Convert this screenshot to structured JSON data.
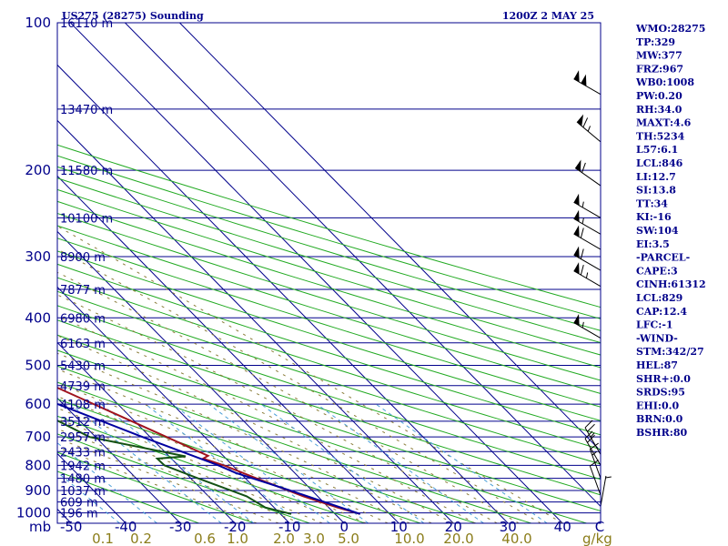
{
  "header": {
    "station": "US275 (28275) Sounding",
    "time": "1200Z  2 MAY 25"
  },
  "indices": [
    "WMO:28275",
    "TP:329",
    "MW:377",
    "FRZ:967",
    "WB0:1008",
    "PW:0.20",
    "RH:34.0",
    "MAXT:4.6",
    "TH:5234",
    "L57:6.1",
    "LCL:846",
    "LI:12.7",
    "SI:13.8",
    "TT:34",
    "KI:-16",
    "SW:104",
    "EI:3.5",
    "-PARCEL-",
    "CAPE:3",
    "CINH:61312",
    "LCL:829",
    "CAP:12.4",
    "LFC:-1",
    "-WIND-",
    "STM:342/27",
    "HEL:87",
    "SHR+:0.0",
    "SRDS:95",
    "EHI:0.0",
    "BRN:0.0",
    "BSHR:80"
  ],
  "axis": {
    "pressure_unit": "mb",
    "mixing_unit": "g/kg"
  },
  "colors": {
    "frame": "#00008b",
    "isobar": "#00008b",
    "isotherm": "#00008b",
    "dry_adiabat": "#22aa22",
    "moist_adiabat": "#8b7d3a",
    "mixing_ratio": "#4a9fd8",
    "temperature": "#a0141e",
    "dewpoint": "#145214",
    "parcel": "#0000a0",
    "wind_barb": "#000000"
  },
  "chart_data": {
    "type": "line",
    "title": "US275 (28275) Sounding",
    "chart_kind": "skew-T log-P sounding",
    "pressure_levels": [
      100,
      200,
      300,
      400,
      500,
      600,
      700,
      800,
      900,
      1000
    ],
    "pressure_range": [
      1050,
      100
    ],
    "temperature_ticks": [
      -50,
      -40,
      -30,
      -20,
      -10,
      0,
      10,
      20,
      30,
      40
    ],
    "mixing_ratio_labels": [
      "0.1",
      "0.2",
      "0.6",
      "1.0",
      "2.0",
      "3.0",
      "5.0",
      "10.0",
      "20.0",
      "40.0"
    ],
    "height_labels": [
      {
        "p": 100,
        "h": "16110 m"
      },
      {
        "p": 150,
        "h": "13470 m"
      },
      {
        "p": 200,
        "h": "11580 m"
      },
      {
        "p": 250,
        "h": "10100 m"
      },
      {
        "p": 300,
        "h": "8900 m"
      },
      {
        "p": 350,
        "h": "7877 m"
      },
      {
        "p": 400,
        "h": "6980 m"
      },
      {
        "p": 450,
        "h": "6163 m"
      },
      {
        "p": 500,
        "h": "5430 m"
      },
      {
        "p": 550,
        "h": "4739 m"
      },
      {
        "p": 600,
        "h": "4108 m"
      },
      {
        "p": 650,
        "h": "3512 m"
      },
      {
        "p": 700,
        "h": "2957 m"
      },
      {
        "p": 750,
        "h": "2433 m"
      },
      {
        "p": 800,
        "h": "1942 m"
      },
      {
        "p": 850,
        "h": "1480 m"
      },
      {
        "p": 900,
        "h": "1037 m"
      },
      {
        "p": 950,
        "h": "609 m"
      },
      {
        "p": 1000,
        "h": "196 m"
      }
    ],
    "series": [
      {
        "name": "temperature",
        "points": [
          [
            1005,
            4.6
          ],
          [
            975,
            1.6
          ],
          [
            925,
            -2.6
          ],
          [
            850,
            -8.0
          ],
          [
            800,
            -11.6
          ],
          [
            775,
            -14.2
          ],
          [
            765,
            -12.8
          ],
          [
            700,
            -17.0
          ],
          [
            600,
            -24.4
          ],
          [
            500,
            -33.2
          ],
          [
            400,
            -44.5
          ],
          [
            330,
            -52.2
          ],
          [
            300,
            -53.9
          ],
          [
            250,
            -56.0
          ],
          [
            200,
            -57.6
          ],
          [
            150,
            -60.3
          ],
          [
            100,
            -62.2
          ]
        ]
      },
      {
        "name": "dewpoint",
        "points": [
          [
            1005,
            -8.0
          ],
          [
            975,
            -11.6
          ],
          [
            925,
            -13.0
          ],
          [
            850,
            -18.7
          ],
          [
            800,
            -22.5
          ],
          [
            775,
            -22.6
          ],
          [
            767,
            -17.0
          ],
          [
            700,
            -31.1
          ],
          [
            600,
            -37.0
          ],
          [
            500,
            -45.0
          ],
          [
            400,
            -55.7
          ],
          [
            350,
            -59.8
          ],
          [
            300,
            -63.6
          ],
          [
            250,
            -66.6
          ],
          [
            200,
            -70.2
          ],
          [
            150,
            -74.3
          ],
          [
            130,
            -78.0
          ],
          [
            100,
            -79.5
          ]
        ]
      },
      {
        "name": "parcel",
        "points": [
          [
            1005,
            4.6
          ],
          [
            900,
            -4.0
          ],
          [
            829,
            -10.8
          ],
          [
            800,
            -12.6
          ],
          [
            700,
            -21.4
          ],
          [
            600,
            -31.0
          ],
          [
            500,
            -42.4
          ],
          [
            400,
            -56.5
          ],
          [
            300,
            -74.0
          ],
          [
            200,
            -96.0
          ],
          [
            150,
            -110.0
          ]
        ]
      }
    ],
    "wind_barbs": [
      {
        "p": 140,
        "dir": 300,
        "kt": 100
      },
      {
        "p": 175,
        "dir": 310,
        "kt": 65
      },
      {
        "p": 215,
        "dir": 305,
        "kt": 60
      },
      {
        "p": 250,
        "dir": 300,
        "kt": 55
      },
      {
        "p": 270,
        "dir": 300,
        "kt": 55
      },
      {
        "p": 290,
        "dir": 300,
        "kt": 60
      },
      {
        "p": 320,
        "dir": 300,
        "kt": 60
      },
      {
        "p": 345,
        "dir": 300,
        "kt": 65
      },
      {
        "p": 440,
        "dir": 300,
        "kt": 55
      },
      {
        "p": 760,
        "dir": 330,
        "kt": 25
      },
      {
        "p": 800,
        "dir": 330,
        "kt": 20
      },
      {
        "p": 850,
        "dir": 340,
        "kt": 15
      },
      {
        "p": 920,
        "dir": 340,
        "kt": 10
      },
      {
        "p": 970,
        "dir": 10,
        "kt": 5
      }
    ]
  }
}
